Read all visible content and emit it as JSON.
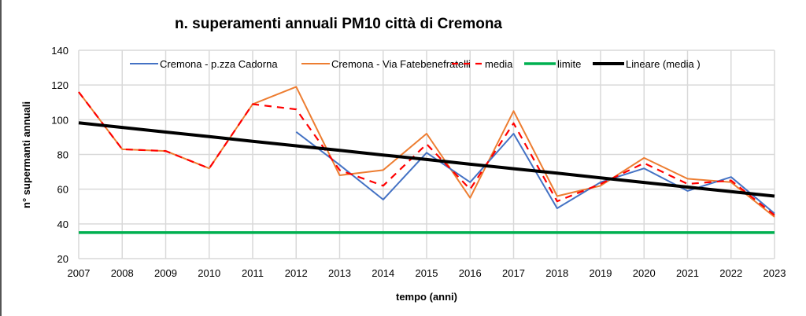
{
  "chart_data": {
    "type": "line",
    "title": "n. superamenti annuali PM10 città di Cremona",
    "xlabel": "tempo (anni)",
    "ylabel": "n° supermanti annuali",
    "x": [
      2007,
      2008,
      2009,
      2010,
      2011,
      2012,
      2013,
      2014,
      2015,
      2016,
      2017,
      2018,
      2019,
      2020,
      2021,
      2022,
      2023
    ],
    "ylim": [
      20,
      140
    ],
    "yticks": [
      20,
      40,
      60,
      80,
      100,
      120,
      140
    ],
    "grid": true,
    "legend_position": "top",
    "series": [
      {
        "name": "Cremona - p.zza Cadorna",
        "color": "#4472C4",
        "style": "solid",
        "values": [
          null,
          null,
          null,
          null,
          null,
          93,
          74,
          54,
          81,
          64,
          92,
          49,
          64,
          72,
          59,
          67,
          46
        ]
      },
      {
        "name": "Cremona - Via Fatebenefratelli",
        "color": "#ED7D31",
        "style": "solid",
        "values": [
          116,
          83,
          82,
          72,
          109,
          119,
          68,
          71,
          92,
          55,
          105,
          56,
          62,
          78,
          66,
          64,
          44
        ]
      },
      {
        "name": "media",
        "color": "#FF0000",
        "style": "dashed",
        "values": [
          116,
          83,
          82,
          72,
          109,
          106,
          71,
          62,
          86,
          60,
          98,
          53,
          63,
          75,
          63,
          65,
          45
        ]
      },
      {
        "name": "limite",
        "color": "#00B050",
        "style": "solid-thick",
        "values": [
          35,
          35,
          35,
          35,
          35,
          35,
          35,
          35,
          35,
          35,
          35,
          35,
          35,
          35,
          35,
          35,
          35
        ]
      },
      {
        "name": "Lineare (media )",
        "color": "#000000",
        "style": "solid-thick",
        "trendline": true,
        "values": [
          98.2,
          95.6,
          92.9,
          90.3,
          87.6,
          85.0,
          82.4,
          79.7,
          77.1,
          74.4,
          71.8,
          69.2,
          66.5,
          63.9,
          61.2,
          58.6,
          56.0
        ]
      }
    ]
  }
}
